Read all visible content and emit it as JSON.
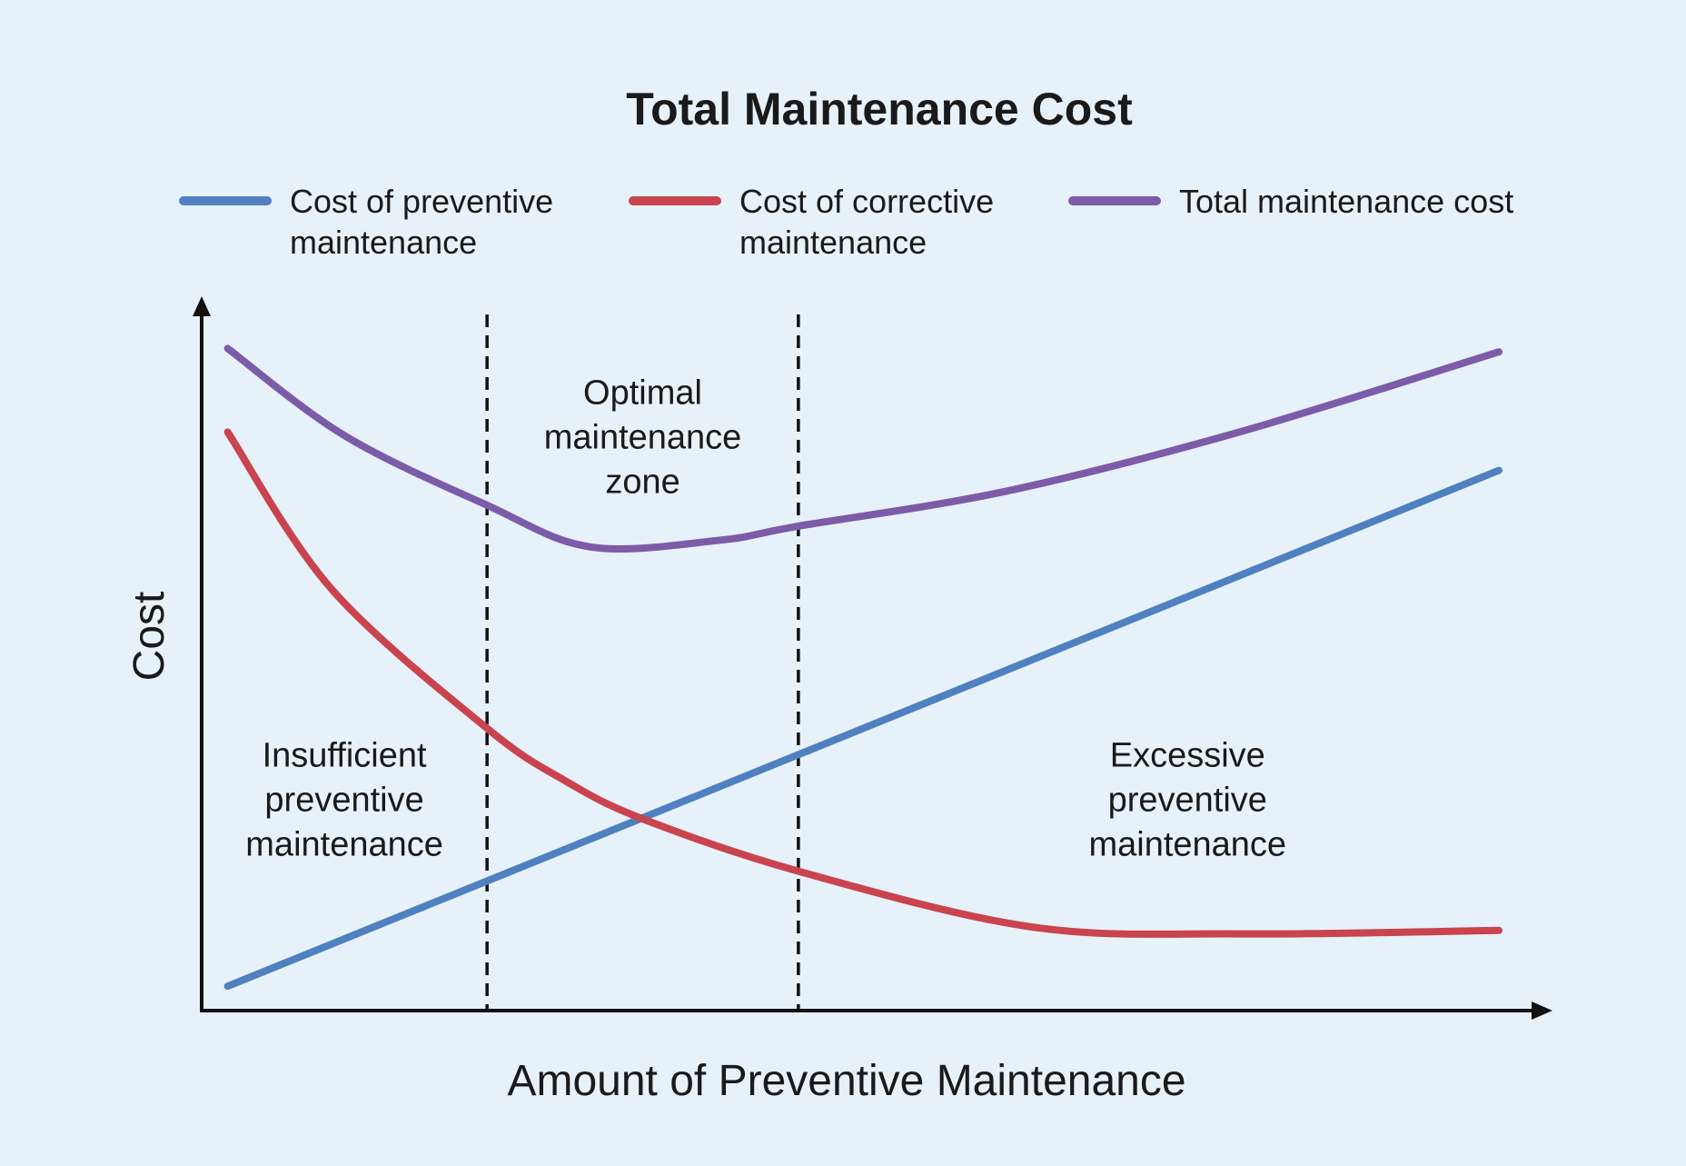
{
  "chart_data": {
    "type": "line",
    "title": "Total Maintenance Cost",
    "xlabel": "Amount of Preventive Maintenance",
    "ylabel": "Cost",
    "xlim": [
      0,
      100
    ],
    "ylim": [
      0,
      100
    ],
    "grid": false,
    "legend_position": "top",
    "series": [
      {
        "key": "preventive",
        "name": "Cost of preventive maintenance",
        "legend_lines": [
          "Cost of preventive",
          "maintenance"
        ],
        "color": "#4f80c0",
        "x": [
          2,
          100
        ],
        "y": [
          3.5,
          77.5
        ]
      },
      {
        "key": "corrective",
        "name": "Cost of corrective maintenance",
        "legend_lines": [
          "Cost of corrective",
          "maintenance"
        ],
        "color": "#c9444f",
        "x": [
          2,
          10,
          22,
          28,
          34,
          46,
          64,
          80,
          100
        ],
        "y": [
          83,
          60.5,
          40.5,
          33,
          27.5,
          20,
          12,
          11,
          11.5
        ]
      },
      {
        "key": "total",
        "name": "Total maintenance cost",
        "legend_lines": [
          "Total maintenance cost"
        ],
        "color": "#7c5ca8",
        "x": [
          2,
          11,
          22,
          30,
          40,
          46,
          62,
          80,
          100
        ],
        "y": [
          95,
          82.5,
          72.5,
          66.5,
          67.5,
          69.5,
          74.5,
          83,
          94.5
        ]
      }
    ],
    "boundaries": [
      22,
      46
    ],
    "annotations": [
      {
        "key": "optimal",
        "lines": [
          "Optimal",
          "maintenance",
          "zone"
        ],
        "x": 34,
        "y": 87
      },
      {
        "key": "insufficient",
        "lines": [
          "Insufficient",
          "preventive",
          "maintenance"
        ],
        "x": 11,
        "y": 35
      },
      {
        "key": "excessive",
        "lines": [
          "Excessive",
          "preventive",
          "maintenance"
        ],
        "x": 76,
        "y": 35
      }
    ]
  }
}
